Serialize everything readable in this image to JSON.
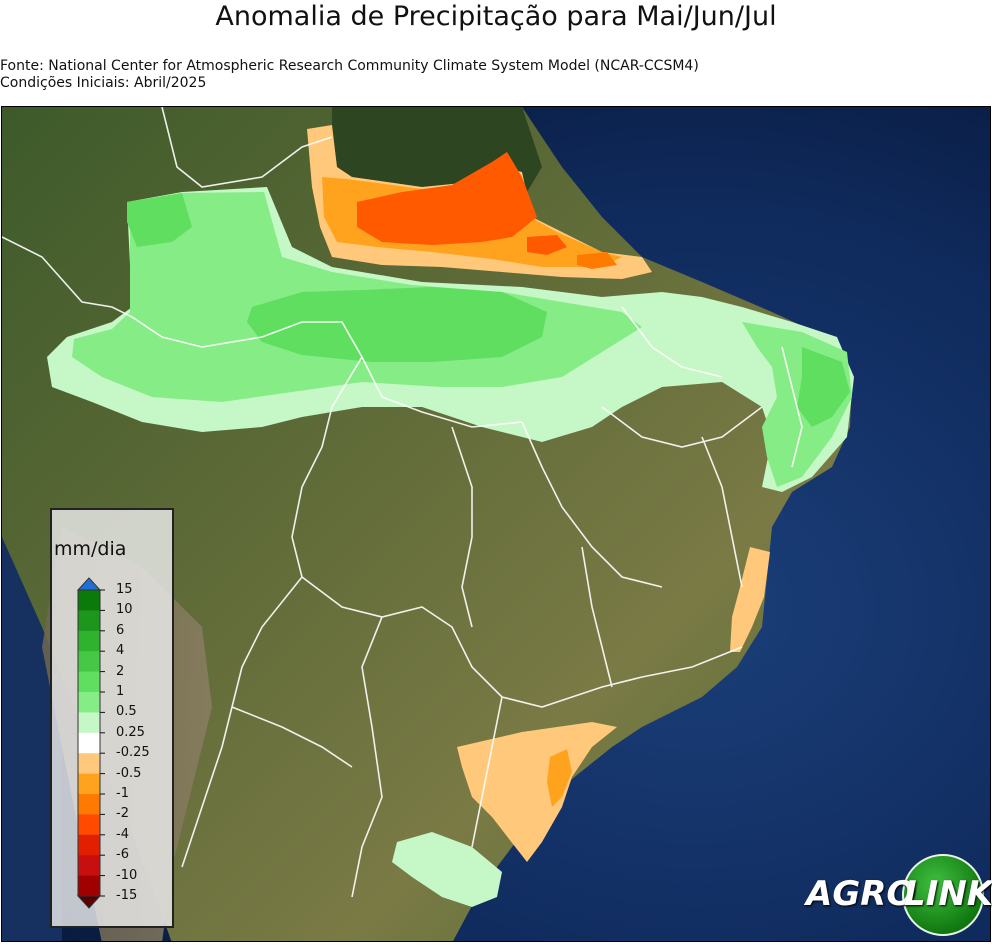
{
  "title": "Anomalia de Precipitação para Mai/Jun/Jul",
  "source_line": "Fonte: National Center for Atmospheric Research Community Climate System Model (NCAR-CCSM4)",
  "init_line": "Condições Iniciais: Abril/2025",
  "legend": {
    "unit": "mm/dia",
    "labels": [
      "15",
      "10",
      "6",
      "4",
      "2",
      "1",
      "0.5",
      "0.25",
      "-0.25",
      "-0.5",
      "-1",
      "-2",
      "-4",
      "-6",
      "-10",
      "-15"
    ],
    "colors": [
      "#0a7a0a",
      "#1c961c",
      "#2fb32f",
      "#46c846",
      "#5fde5f",
      "#86ec86",
      "#c6f7c6",
      "#ffffff",
      "#ffc87a",
      "#ffa31f",
      "#ff7a00",
      "#ff4a00",
      "#e02000",
      "#c80f0f",
      "#a00000"
    ]
  },
  "anomaly_colors": {
    "light_green": "#c6f7c6",
    "mid_green": "#86ec86",
    "green": "#5fde5f",
    "light_orange": "#ffc87a",
    "orange": "#ffa31f",
    "dark_orange": "#ff5a00"
  },
  "logo": {
    "part1": "AGRO",
    "part2": "LINK"
  }
}
